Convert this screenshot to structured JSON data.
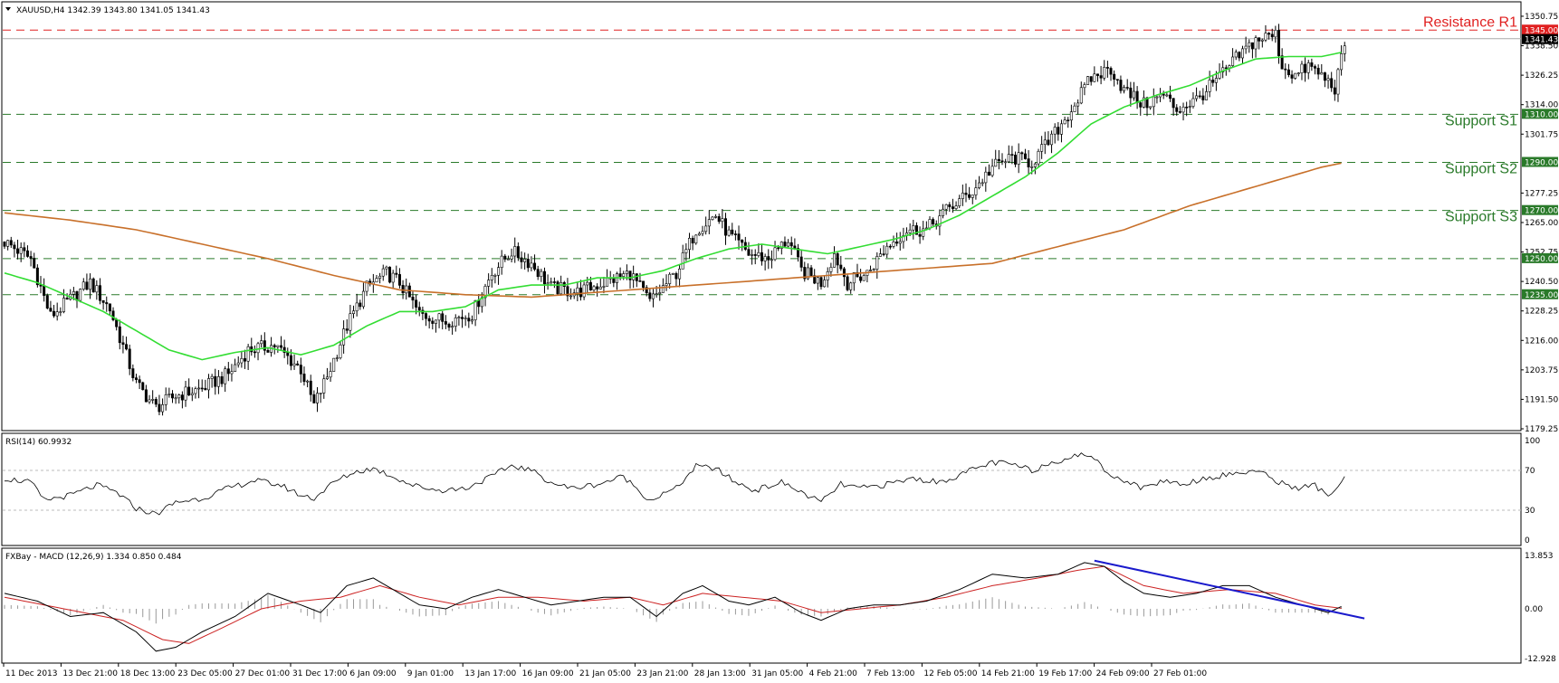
{
  "colors": {
    "bull_candle": "#ffffff",
    "bear_candle": "#000000",
    "ma_fast": "#33dd33",
    "ma_slow": "#c8702a",
    "resistance": "#e02020",
    "support": "#2a7a2a",
    "trendline": "#1a1acc",
    "rsi_line": "#000000",
    "macd_line": "#000000",
    "signal_line": "#cc2222",
    "histogram": "#999999"
  },
  "main_panel": {
    "header": "XAUUSD,H4  1342.39 1343.80 1341.05 1341.43",
    "price_tag": "1341.43",
    "levels": [
      {
        "name": "Resistance R1",
        "value": 1345.0,
        "box": "1345.00",
        "kind": "resistance"
      },
      {
        "name": "Support S1",
        "value": 1310.0,
        "box": "1310.00",
        "kind": "support"
      },
      {
        "name": "Support S2",
        "value": 1290.0,
        "box": "1290.00",
        "kind": "support"
      },
      {
        "name": "Support S3",
        "value": 1270.0,
        "box": "1270.00",
        "kind": "support"
      },
      {
        "name": "",
        "value": 1250.0,
        "box": "1250.00",
        "kind": "support"
      },
      {
        "name": "",
        "value": 1235.0,
        "box": "1235.00",
        "kind": "support"
      }
    ],
    "y_ticks": [
      "1350.75",
      "1338.50",
      "1326.25",
      "1314.00",
      "1301.75",
      "1277.25",
      "1265.00",
      "1252.75",
      "1240.50",
      "1228.25",
      "1216.00",
      "1203.75",
      "1191.50",
      "1179.25"
    ]
  },
  "rsi_panel": {
    "header": "RSI(14) 60.9932",
    "y_ticks": [
      "100",
      "70",
      "30",
      "0"
    ]
  },
  "macd_panel": {
    "header": "FXBay - MACD (12,26,9) 1.334 0.850 0.484",
    "y_ticks": [
      "13.853",
      "0.00",
      "-12.928"
    ]
  },
  "x_labels": [
    "11 Dec 2013",
    "13 Dec 21:00",
    "18 Dec 13:00",
    "23 Dec 05:00",
    "27 Dec 01:00",
    "31 Dec 17:00",
    "6 Jan 09:00",
    "9 Jan 01:00",
    "13 Jan 17:00",
    "16 Jan 09:00",
    "21 Jan 05:00",
    "23 Jan 21:00",
    "28 Jan 13:00",
    "31 Jan 05:00",
    "4 Feb 21:00",
    "7 Feb 13:00",
    "12 Feb 05:00",
    "14 Feb 21:00",
    "19 Feb 17:00",
    "24 Feb 09:00",
    "27 Feb 01:00"
  ],
  "chart_data": [
    {
      "type": "candlestick",
      "title": "XAUUSD,H4",
      "ylim": [
        1179.25,
        1356.0
      ],
      "close_path": [
        [
          0,
          1257
        ],
        [
          8,
          1250
        ],
        [
          14,
          1226
        ],
        [
          20,
          1233
        ],
        [
          26,
          1240
        ],
        [
          32,
          1229
        ],
        [
          40,
          1198
        ],
        [
          46,
          1188
        ],
        [
          52,
          1193
        ],
        [
          60,
          1196
        ],
        [
          68,
          1202
        ],
        [
          74,
          1212
        ],
        [
          82,
          1214
        ],
        [
          90,
          1204
        ],
        [
          94,
          1189
        ],
        [
          98,
          1201
        ],
        [
          104,
          1222
        ],
        [
          110,
          1238
        ],
        [
          116,
          1244
        ],
        [
          120,
          1240
        ],
        [
          126,
          1227
        ],
        [
          134,
          1224
        ],
        [
          142,
          1227
        ],
        [
          148,
          1244
        ],
        [
          154,
          1253
        ],
        [
          160,
          1248
        ],
        [
          166,
          1238
        ],
        [
          174,
          1236
        ],
        [
          182,
          1240
        ],
        [
          190,
          1244
        ],
        [
          196,
          1232
        ],
        [
          204,
          1244
        ],
        [
          210,
          1262
        ],
        [
          216,
          1268
        ],
        [
          220,
          1260
        ],
        [
          226,
          1252
        ],
        [
          232,
          1250
        ],
        [
          238,
          1258
        ],
        [
          242,
          1245
        ],
        [
          248,
          1240
        ],
        [
          252,
          1252
        ],
        [
          256,
          1240
        ],
        [
          262,
          1244
        ],
        [
          268,
          1255
        ],
        [
          274,
          1262
        ],
        [
          280,
          1262
        ],
        [
          286,
          1270
        ],
        [
          294,
          1278
        ],
        [
          300,
          1288
        ],
        [
          306,
          1292
        ],
        [
          312,
          1290
        ],
        [
          318,
          1300
        ],
        [
          324,
          1312
        ],
        [
          330,
          1325
        ],
        [
          336,
          1329
        ],
        [
          340,
          1320
        ],
        [
          346,
          1314
        ],
        [
          352,
          1318
        ],
        [
          356,
          1312
        ],
        [
          362,
          1316
        ],
        [
          368,
          1324
        ],
        [
          374,
          1333
        ],
        [
          380,
          1341
        ],
        [
          386,
          1343
        ],
        [
          388,
          1330
        ],
        [
          392,
          1326
        ],
        [
          396,
          1330
        ],
        [
          400,
          1326
        ],
        [
          404,
          1321
        ],
        [
          407,
          1338
        ]
      ],
      "ma_fast_path": [
        [
          0,
          1244
        ],
        [
          10,
          1240
        ],
        [
          20,
          1234
        ],
        [
          30,
          1228
        ],
        [
          40,
          1220
        ],
        [
          50,
          1212
        ],
        [
          60,
          1208
        ],
        [
          70,
          1211
        ],
        [
          80,
          1213
        ],
        [
          90,
          1210
        ],
        [
          100,
          1214
        ],
        [
          110,
          1222
        ],
        [
          120,
          1228
        ],
        [
          130,
          1228
        ],
        [
          140,
          1230
        ],
        [
          150,
          1237
        ],
        [
          160,
          1239
        ],
        [
          170,
          1239
        ],
        [
          180,
          1242
        ],
        [
          190,
          1242
        ],
        [
          200,
          1245
        ],
        [
          210,
          1250
        ],
        [
          220,
          1254
        ],
        [
          230,
          1256
        ],
        [
          240,
          1254
        ],
        [
          250,
          1252
        ],
        [
          260,
          1255
        ],
        [
          270,
          1258
        ],
        [
          280,
          1262
        ],
        [
          290,
          1268
        ],
        [
          300,
          1276
        ],
        [
          310,
          1284
        ],
        [
          320,
          1294
        ],
        [
          330,
          1306
        ],
        [
          340,
          1313
        ],
        [
          350,
          1318
        ],
        [
          360,
          1322
        ],
        [
          370,
          1328
        ],
        [
          380,
          1333
        ],
        [
          390,
          1334
        ],
        [
          400,
          1334
        ],
        [
          407,
          1336
        ]
      ],
      "ma_slow_path": [
        [
          0,
          1269
        ],
        [
          20,
          1266
        ],
        [
          40,
          1262
        ],
        [
          60,
          1256
        ],
        [
          80,
          1250
        ],
        [
          100,
          1243
        ],
        [
          120,
          1237
        ],
        [
          140,
          1235
        ],
        [
          160,
          1234
        ],
        [
          180,
          1236
        ],
        [
          200,
          1238
        ],
        [
          220,
          1240
        ],
        [
          240,
          1242
        ],
        [
          260,
          1244
        ],
        [
          280,
          1246
        ],
        [
          300,
          1248
        ],
        [
          320,
          1255
        ],
        [
          340,
          1262
        ],
        [
          360,
          1272
        ],
        [
          380,
          1280
        ],
        [
          400,
          1288
        ],
        [
          407,
          1290
        ]
      ]
    },
    {
      "type": "line",
      "title": "RSI(14)",
      "ylim": [
        0,
        100
      ],
      "values_path": [
        [
          0,
          62
        ],
        [
          8,
          58
        ],
        [
          12,
          40
        ],
        [
          20,
          45
        ],
        [
          28,
          55
        ],
        [
          34,
          48
        ],
        [
          40,
          32
        ],
        [
          46,
          26
        ],
        [
          52,
          38
        ],
        [
          60,
          42
        ],
        [
          68,
          52
        ],
        [
          76,
          60
        ],
        [
          84,
          55
        ],
        [
          90,
          45
        ],
        [
          94,
          42
        ],
        [
          100,
          58
        ],
        [
          106,
          68
        ],
        [
          112,
          72
        ],
        [
          118,
          64
        ],
        [
          124,
          55
        ],
        [
          132,
          50
        ],
        [
          140,
          52
        ],
        [
          148,
          64
        ],
        [
          154,
          75
        ],
        [
          160,
          70
        ],
        [
          166,
          58
        ],
        [
          172,
          52
        ],
        [
          180,
          56
        ],
        [
          188,
          64
        ],
        [
          196,
          40
        ],
        [
          204,
          52
        ],
        [
          210,
          74
        ],
        [
          216,
          72
        ],
        [
          222,
          58
        ],
        [
          228,
          50
        ],
        [
          236,
          58
        ],
        [
          242,
          48
        ],
        [
          248,
          38
        ],
        [
          254,
          56
        ],
        [
          260,
          52
        ],
        [
          268,
          56
        ],
        [
          276,
          62
        ],
        [
          284,
          58
        ],
        [
          292,
          68
        ],
        [
          300,
          78
        ],
        [
          306,
          76
        ],
        [
          312,
          70
        ],
        [
          318,
          78
        ],
        [
          324,
          84
        ],
        [
          330,
          86
        ],
        [
          334,
          70
        ],
        [
          340,
          60
        ],
        [
          346,
          52
        ],
        [
          352,
          60
        ],
        [
          358,
          56
        ],
        [
          364,
          62
        ],
        [
          372,
          66
        ],
        [
          380,
          70
        ],
        [
          386,
          60
        ],
        [
          392,
          52
        ],
        [
          398,
          55
        ],
        [
          402,
          44
        ],
        [
          407,
          61
        ]
      ]
    },
    {
      "type": "line",
      "title": "FXBay - MACD (12,26,9)",
      "ylim": [
        -12.928,
        13.853
      ],
      "macd_path": [
        [
          0,
          4
        ],
        [
          10,
          2
        ],
        [
          20,
          -2
        ],
        [
          30,
          -1
        ],
        [
          40,
          -6
        ],
        [
          46,
          -11
        ],
        [
          52,
          -10
        ],
        [
          60,
          -6
        ],
        [
          70,
          -2
        ],
        [
          80,
          4
        ],
        [
          90,
          1
        ],
        [
          96,
          -1
        ],
        [
          104,
          6
        ],
        [
          112,
          8
        ],
        [
          118,
          5
        ],
        [
          126,
          1
        ],
        [
          134,
          0
        ],
        [
          142,
          3
        ],
        [
          150,
          5
        ],
        [
          158,
          3
        ],
        [
          166,
          1
        ],
        [
          174,
          2
        ],
        [
          182,
          3
        ],
        [
          190,
          3
        ],
        [
          198,
          -2
        ],
        [
          206,
          4
        ],
        [
          212,
          6
        ],
        [
          220,
          2
        ],
        [
          226,
          1
        ],
        [
          234,
          3
        ],
        [
          242,
          -1
        ],
        [
          248,
          -3
        ],
        [
          256,
          0
        ],
        [
          264,
          1
        ],
        [
          272,
          1
        ],
        [
          280,
          2
        ],
        [
          290,
          5
        ],
        [
          300,
          9
        ],
        [
          310,
          8
        ],
        [
          320,
          9
        ],
        [
          328,
          12
        ],
        [
          334,
          11
        ],
        [
          340,
          7
        ],
        [
          346,
          4
        ],
        [
          354,
          3
        ],
        [
          362,
          4
        ],
        [
          370,
          6
        ],
        [
          378,
          6
        ],
        [
          386,
          3
        ],
        [
          394,
          1
        ],
        [
          402,
          -1
        ],
        [
          407,
          1
        ]
      ],
      "signal_path": [
        [
          0,
          3
        ],
        [
          12,
          1
        ],
        [
          24,
          -1
        ],
        [
          36,
          -3
        ],
        [
          48,
          -8
        ],
        [
          56,
          -9
        ],
        [
          66,
          -5
        ],
        [
          78,
          0
        ],
        [
          90,
          2
        ],
        [
          102,
          3
        ],
        [
          114,
          6
        ],
        [
          126,
          3
        ],
        [
          138,
          1
        ],
        [
          150,
          3
        ],
        [
          162,
          3
        ],
        [
          176,
          2
        ],
        [
          190,
          3
        ],
        [
          200,
          1
        ],
        [
          212,
          4
        ],
        [
          224,
          3
        ],
        [
          236,
          2
        ],
        [
          248,
          -1
        ],
        [
          260,
          0
        ],
        [
          272,
          1
        ],
        [
          286,
          3
        ],
        [
          300,
          6
        ],
        [
          314,
          8
        ],
        [
          326,
          10
        ],
        [
          334,
          11
        ],
        [
          346,
          6
        ],
        [
          358,
          4
        ],
        [
          372,
          5
        ],
        [
          386,
          4
        ],
        [
          398,
          1
        ],
        [
          407,
          0
        ]
      ],
      "trendline": [
        [
          331,
          12.5
        ],
        [
          413,
          -2.5
        ]
      ]
    }
  ]
}
